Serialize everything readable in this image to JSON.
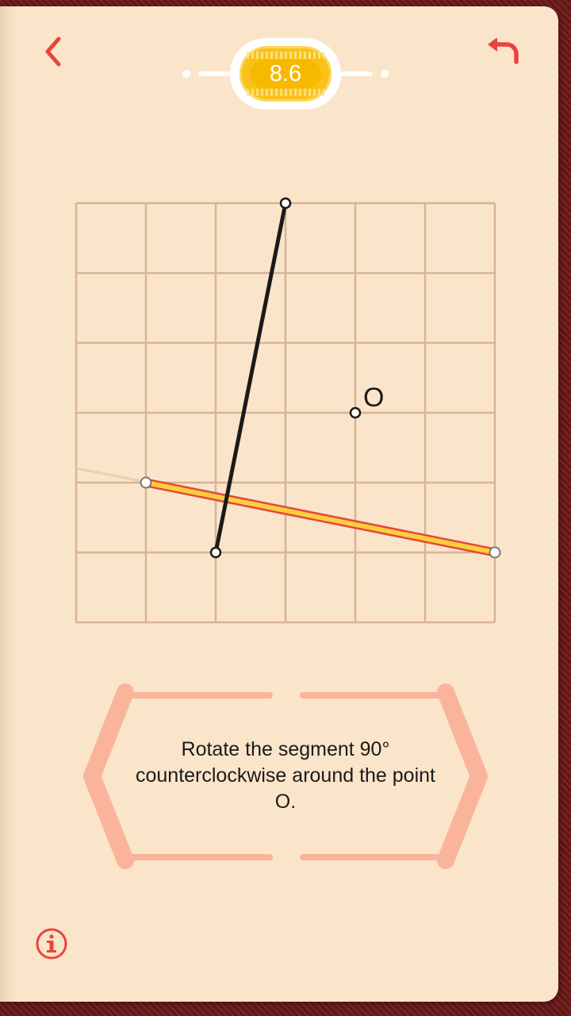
{
  "header": {
    "score": "8.6",
    "back_icon": "chevron-left-icon",
    "undo_icon": "undo-arrow-icon"
  },
  "board": {
    "grid_rows": 6,
    "grid_cols": 6,
    "pivot_label": "O",
    "pivot_point": [
      4,
      3
    ],
    "black_segment": [
      [
        3,
        0
      ],
      [
        2,
        5
      ]
    ],
    "yellow_segment": [
      [
        1,
        4
      ],
      [
        6,
        5
      ]
    ]
  },
  "instruction": {
    "text": "Rotate the segment 90° counterclockwise around the point O."
  },
  "footer": {
    "info_icon": "info-icon"
  },
  "colors": {
    "accent": "#e8453c",
    "page": "#fae5ca",
    "grid": "#d9b299",
    "score": "#f8c21a",
    "frame": "#f9b49b"
  }
}
